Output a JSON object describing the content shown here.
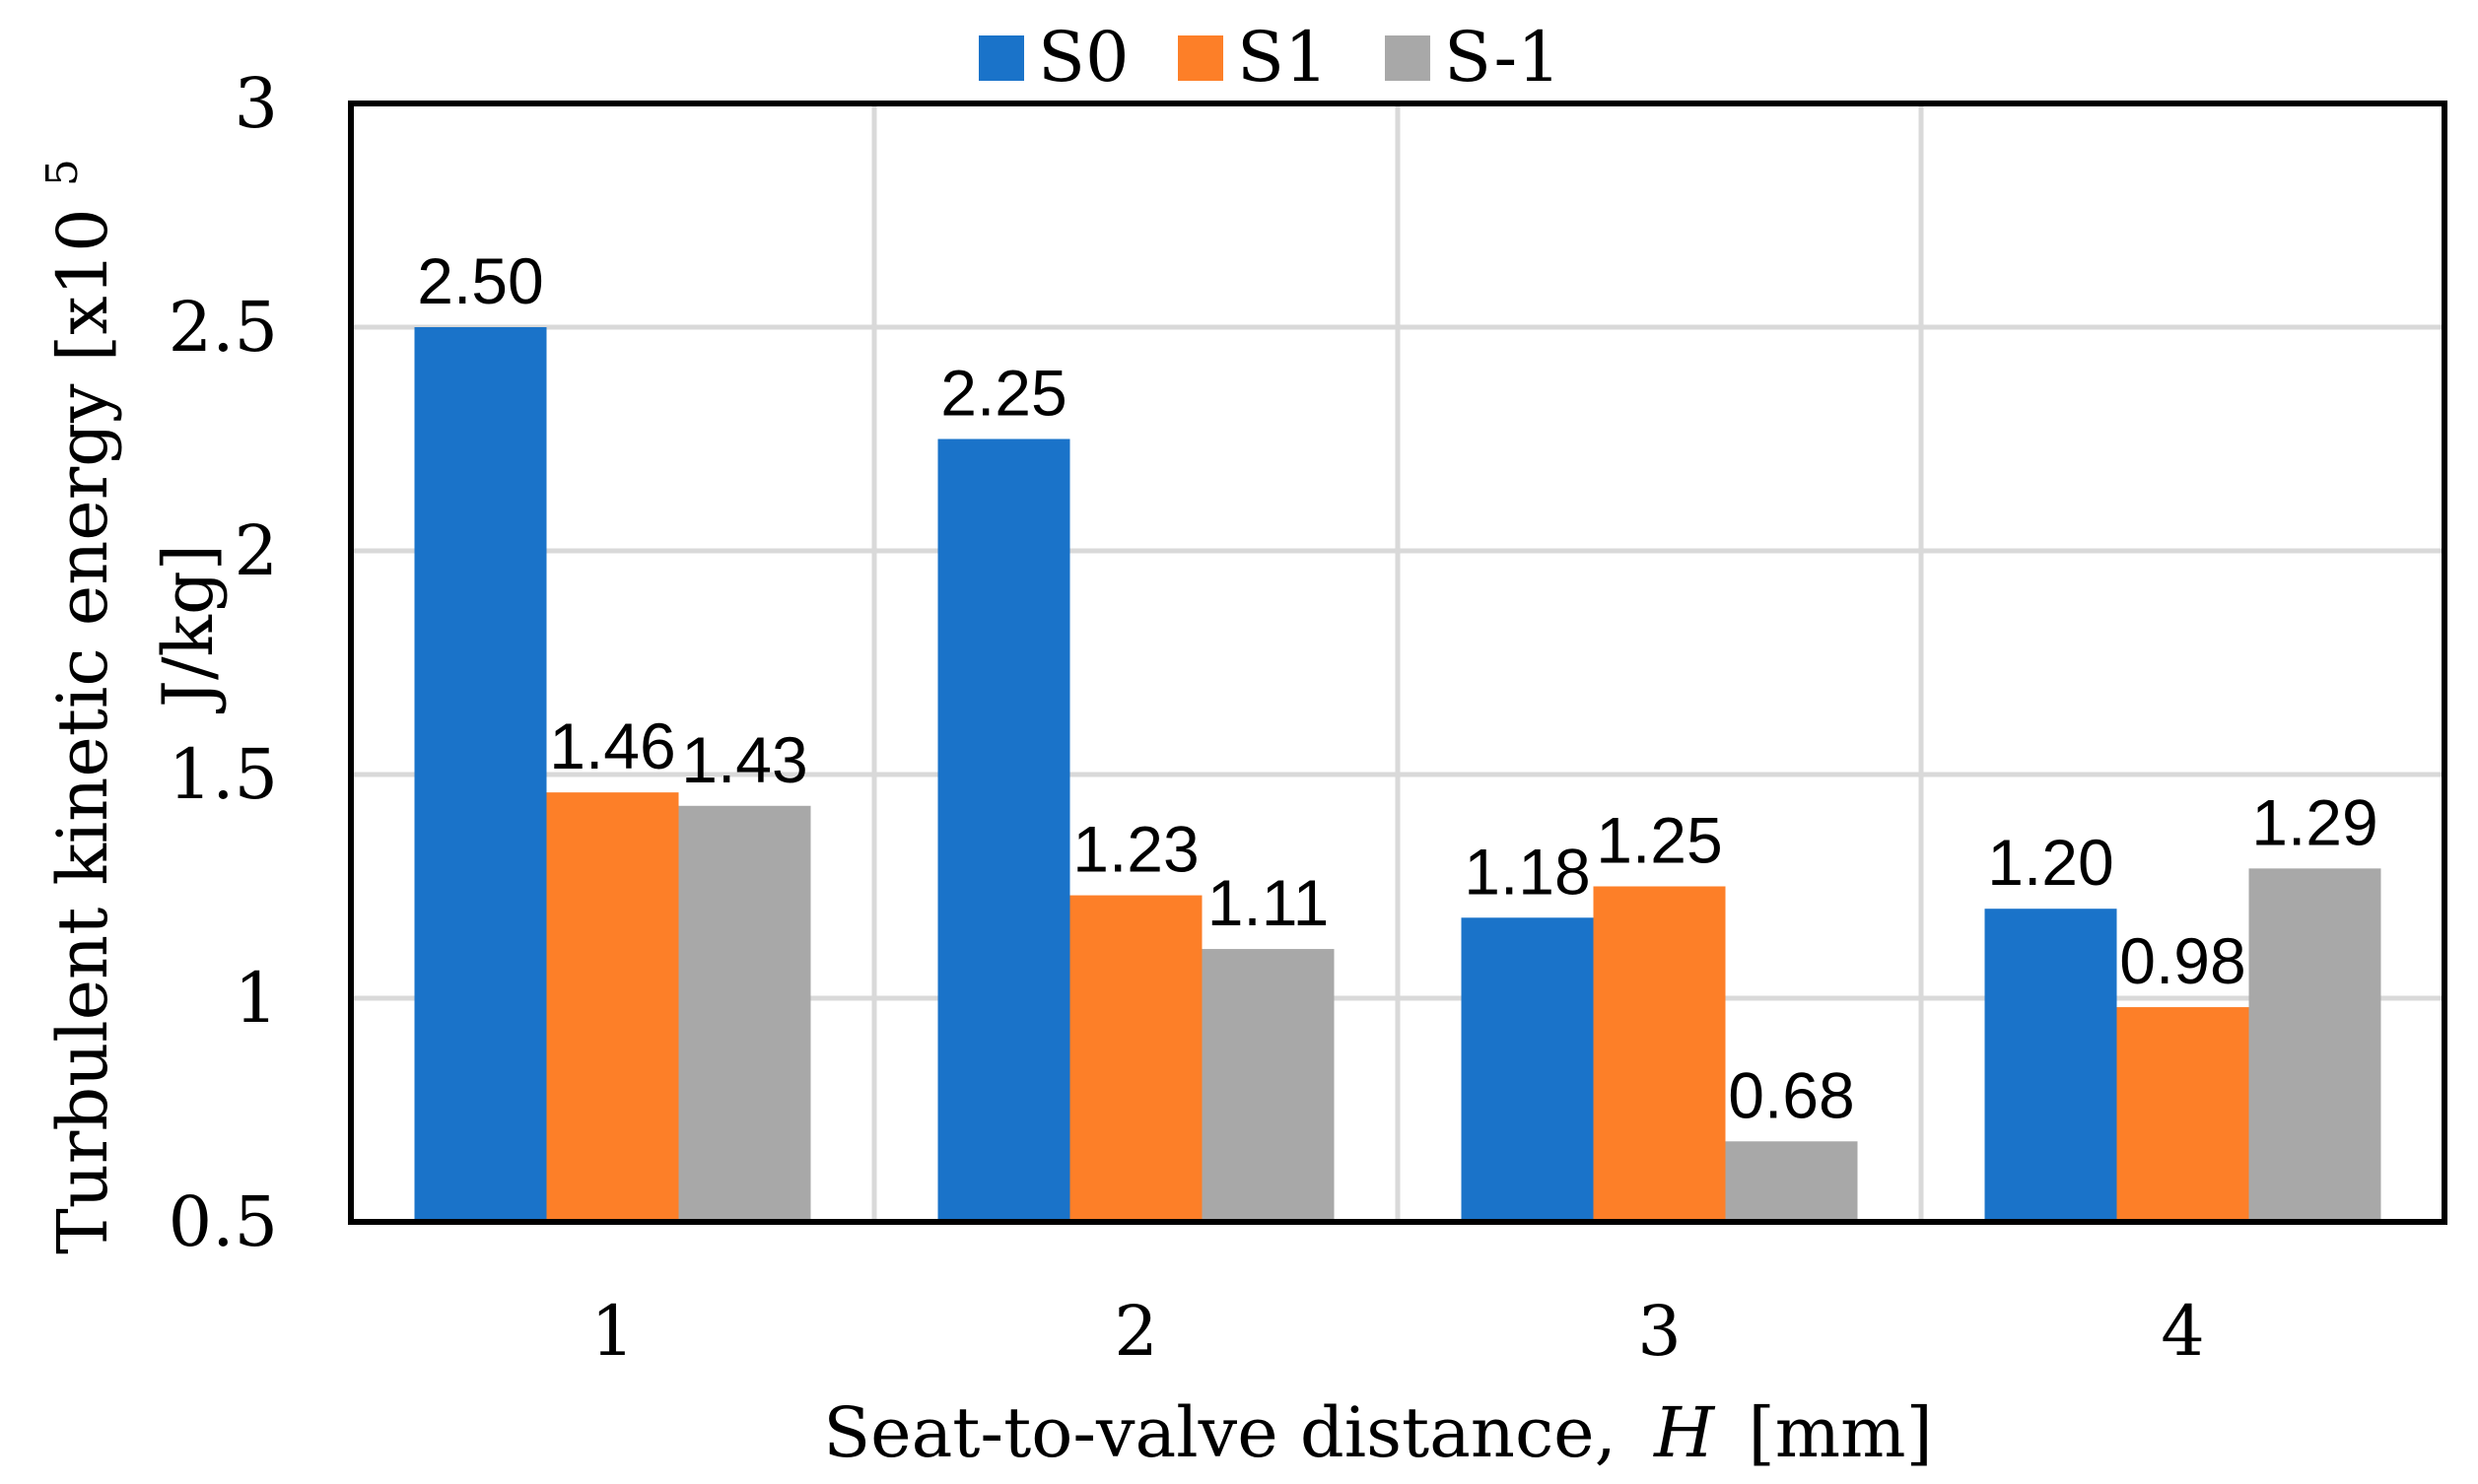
{
  "chart_data": {
    "type": "bar",
    "title": "",
    "categories": [
      "1",
      "2",
      "3",
      "4"
    ],
    "series": [
      {
        "name": "S0",
        "color": "#1a73c9",
        "values": [
          2.5,
          2.25,
          1.18,
          1.2
        ],
        "labels": [
          "2.50",
          "2.25",
          "1.18",
          "1.20"
        ]
      },
      {
        "name": "S1",
        "color": "#fd7f28",
        "values": [
          1.46,
          1.23,
          1.25,
          0.98
        ],
        "labels": [
          "1.46",
          "1.23",
          "1.25",
          "0.98"
        ]
      },
      {
        "name": "S-1",
        "color": "#a8a8a8",
        "values": [
          1.43,
          1.11,
          0.68,
          1.29
        ],
        "labels": [
          "1.43",
          "1.11",
          "0.68",
          "1.29"
        ]
      }
    ],
    "xlabel": "Seat-to-valve distance,",
    "xlabel_italic": "H",
    "xlabel_unit": "[mm]",
    "ylabel_line1": "Turbulent kinetic energy [x10",
    "ylabel_superscript": "5",
    "ylabel_line2": "J/kg]",
    "ylim": [
      0.5,
      3
    ],
    "yticks": [
      "0.5",
      "1",
      "1.5",
      "2",
      "2.5",
      "3"
    ],
    "grid": true,
    "legend_position": "top-center"
  }
}
